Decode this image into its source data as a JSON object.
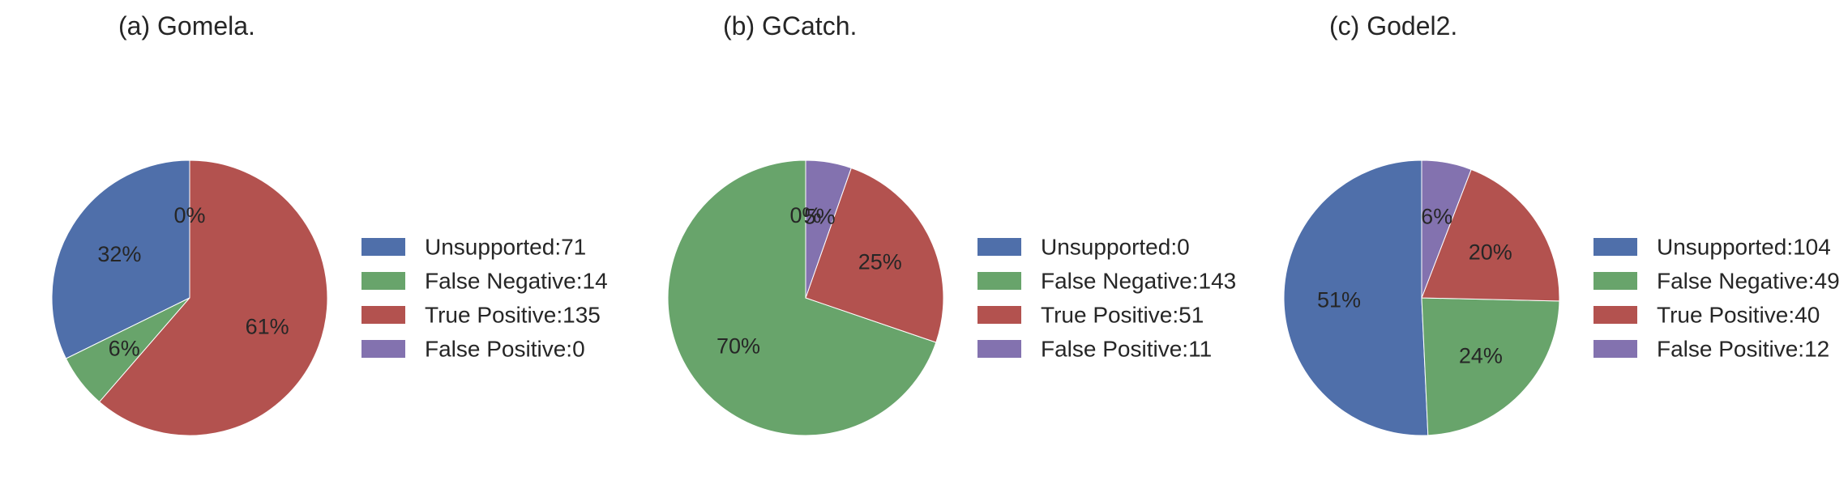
{
  "colors": {
    "Unsupported": "#4f6faa",
    "False Negative": "#68a46b",
    "True Positive": "#b3524f",
    "False Positive": "#8372af",
    "edge": "#ffffff"
  },
  "chart_data": [
    {
      "type": "pie",
      "title": "(a) Gomela.",
      "slices": [
        {
          "name": "Unsupported",
          "value": 71,
          "pct_label": "32%",
          "legend": "Unsupported:71"
        },
        {
          "name": "False Negative",
          "value": 14,
          "pct_label": "6%",
          "legend": "False Negative:14"
        },
        {
          "name": "True Positive",
          "value": 135,
          "pct_label": "61%",
          "legend": "True Positive:135"
        },
        {
          "name": "False Positive",
          "value": 0,
          "pct_label": "0%",
          "legend": "False Positive:0"
        }
      ],
      "start_angle_deg": 90,
      "direction": "counterclockwise",
      "legend_position": "right"
    },
    {
      "type": "pie",
      "title": "(b) GCatch.",
      "slices": [
        {
          "name": "Unsupported",
          "value": 0,
          "pct_label": "0%",
          "legend": "Unsupported:0"
        },
        {
          "name": "False Negative",
          "value": 143,
          "pct_label": "70%",
          "legend": "False Negative:143"
        },
        {
          "name": "True Positive",
          "value": 51,
          "pct_label": "25%",
          "legend": "True Positive:51"
        },
        {
          "name": "False Positive",
          "value": 11,
          "pct_label": "5%",
          "legend": "False Positive:11"
        }
      ],
      "start_angle_deg": 90,
      "direction": "counterclockwise",
      "legend_position": "right"
    },
    {
      "type": "pie",
      "title": "(c) Godel2.",
      "slices": [
        {
          "name": "Unsupported",
          "value": 104,
          "pct_label": "51%",
          "legend": "Unsupported:104"
        },
        {
          "name": "False Negative",
          "value": 49,
          "pct_label": "24%",
          "legend": "False Negative:49"
        },
        {
          "name": "True Positive",
          "value": 40,
          "pct_label": "20%",
          "legend": "True Positive:40"
        },
        {
          "name": "False Positive",
          "value": 12,
          "pct_label": "6%",
          "legend": "False Positive:12"
        }
      ],
      "start_angle_deg": 90,
      "direction": "counterclockwise",
      "legend_position": "right"
    }
  ]
}
